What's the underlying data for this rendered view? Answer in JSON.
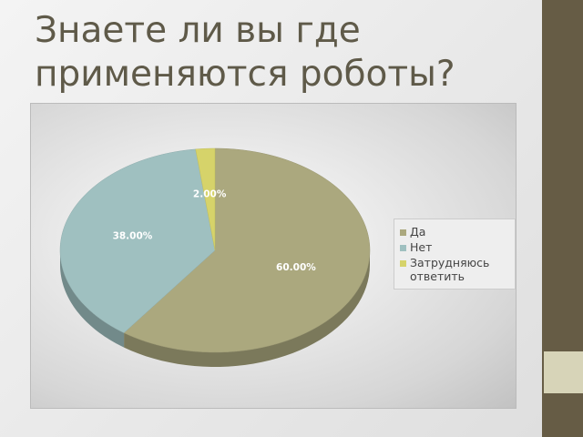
{
  "chart_data": {
    "type": "pie",
    "title": "Знаете ли вы где применяются роботы?",
    "categories": [
      "Да",
      "Нет",
      "Затрудняюсь ответить"
    ],
    "values": [
      60,
      38,
      2
    ],
    "value_labels": [
      "60.00%",
      "38.00%",
      "2.00%"
    ],
    "colors": [
      "#aba87e",
      "#9fc0c0",
      "#d6d36a"
    ],
    "legend": "right"
  }
}
